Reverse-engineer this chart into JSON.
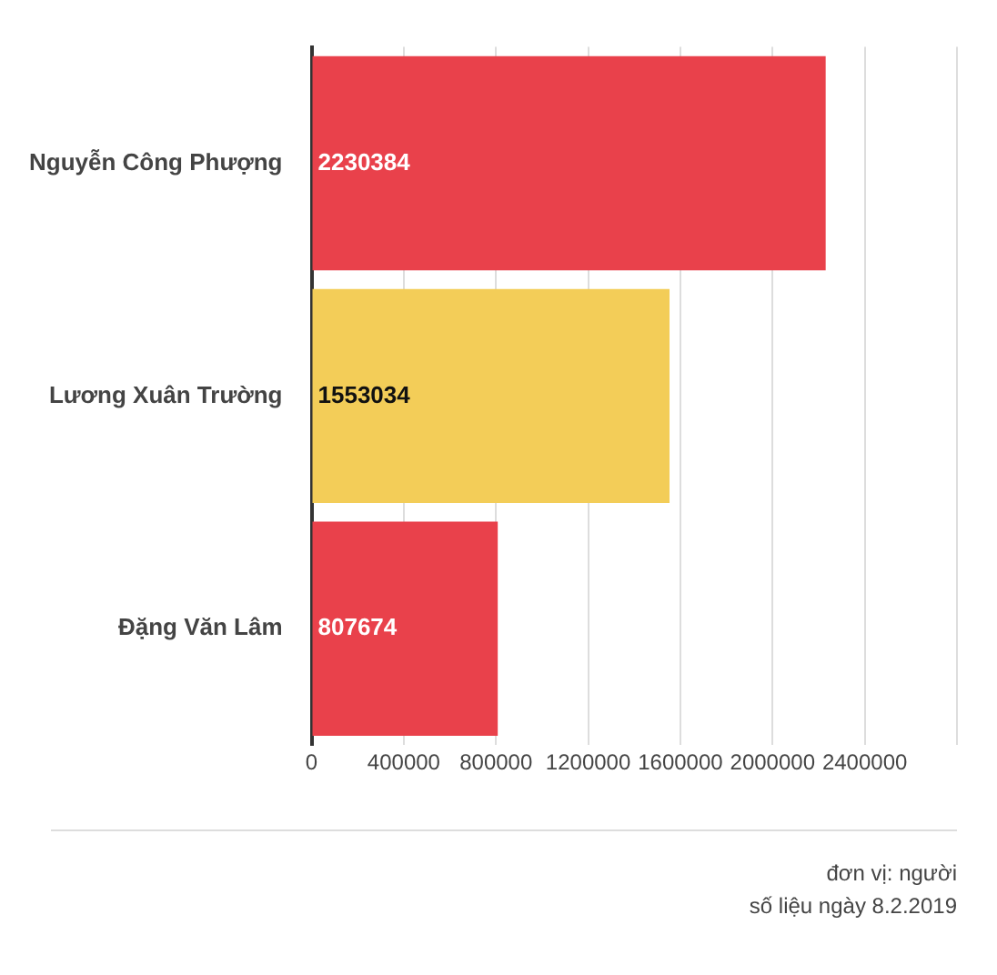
{
  "chart_data": {
    "type": "bar",
    "orientation": "horizontal",
    "categories": [
      "Nguyễn Công Phượng",
      "Lương Xuân Trường",
      "Đặng Văn Lâm"
    ],
    "values": [
      2230384,
      1553034,
      807674
    ],
    "colors": [
      "#e9414b",
      "#f3cd58",
      "#e9414b"
    ],
    "xlim": [
      0,
      2800000
    ],
    "xticks": [
      0,
      400000,
      800000,
      1200000,
      1600000,
      2000000,
      2400000,
      {
        "value": 2800000,
        "label": null
      }
    ],
    "grid": "x",
    "data_labels": true,
    "legend": false,
    "annotations": [
      "đơn vị: người",
      "số liệu ngày 8.2.2019"
    ]
  }
}
